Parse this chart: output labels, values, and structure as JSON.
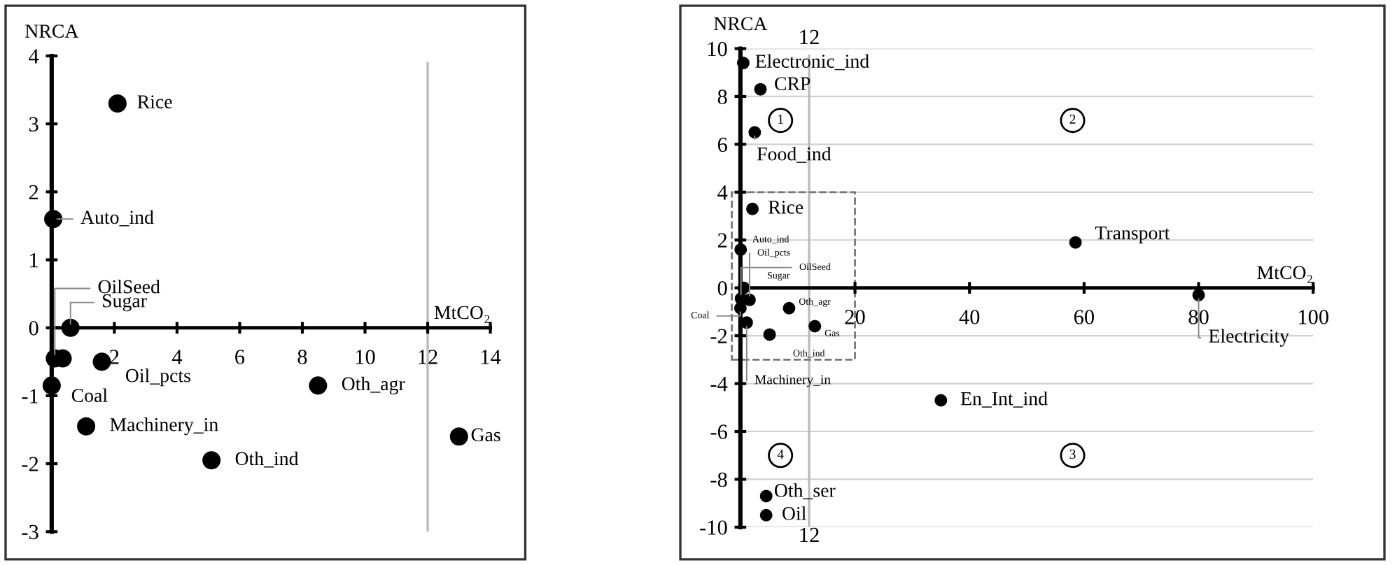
{
  "chart_data": [
    {
      "type": "scatter",
      "xlabel": "MtCO₂",
      "ylabel": "NRCA",
      "marker": "circle",
      "grid": false,
      "xlim": [
        0,
        14
      ],
      "ylim": [
        -3,
        4
      ],
      "xticks": [
        {
          "value": 0,
          "label": null
        },
        2,
        4,
        6,
        8,
        10,
        12,
        14
      ],
      "yticks": [
        -3,
        -2,
        -1,
        0,
        1,
        2,
        3,
        4
      ],
      "series": [
        {
          "color": "#000000",
          "x": [
            2.1,
            0.05,
            0.1,
            0.35,
            1.6,
            0.0,
            1.1,
            5.1,
            8.5,
            13.0,
            0.6
          ],
          "values": [
            3.3,
            1.6,
            -0.45,
            -0.45,
            -0.5,
            -0.85,
            -1.45,
            -1.95,
            -0.85,
            -1.6,
            0.0
          ]
        }
      ],
      "ref_lines": [
        {
          "axis": "x",
          "value": 12,
          "color": "#bbbbbb"
        }
      ],
      "annotations": [
        {
          "text": "Rice",
          "x": 2.1,
          "y": 3.3
        },
        {
          "text": "Auto_ind",
          "x": 0.05,
          "y": 1.6
        },
        {
          "text": "OilSeed",
          "x": 0.1,
          "y": -0.45
        },
        {
          "text": "Sugar",
          "x": 0.6,
          "y": 0.0
        },
        {
          "text": "Oil_pcts",
          "x": 1.6,
          "y": -0.5
        },
        {
          "text": "Coal",
          "x": 0.0,
          "y": -0.85
        },
        {
          "text": "Machinery_in",
          "x": 1.1,
          "y": -1.45
        },
        {
          "text": "Oth_ind",
          "x": 5.1,
          "y": -1.95
        },
        {
          "text": "Oth_agr",
          "x": 8.5,
          "y": -0.85
        },
        {
          "text": "Gas",
          "x": 13.0,
          "y": -1.6
        }
      ]
    },
    {
      "type": "scatter",
      "xlabel": "MtCO₂",
      "ylabel": "NRCA",
      "marker": "circle",
      "grid": "y",
      "xlim": [
        0,
        100
      ],
      "ylim": [
        -10,
        10
      ],
      "xticks": [
        {
          "value": 0,
          "label": null
        },
        20,
        40,
        60,
        80,
        100
      ],
      "yticks": [
        -10,
        -8,
        -6,
        -4,
        -2,
        0,
        2,
        4,
        6,
        8,
        10
      ],
      "series": [
        {
          "color": "#000000",
          "x": [
            0.5,
            3.5,
            2.5,
            2.1,
            0.05,
            0.1,
            1.6,
            0.0,
            1.1,
            5.1,
            8.5,
            13.0,
            0.6,
            58.5,
            80.0,
            35.0,
            4.5,
            4.5
          ],
          "values": [
            9.4,
            8.3,
            6.5,
            3.3,
            1.6,
            -0.45,
            -0.5,
            -0.85,
            -1.45,
            -1.95,
            -0.85,
            -1.6,
            0.0,
            1.9,
            -0.3,
            -4.7,
            -8.7,
            -9.5
          ]
        }
      ],
      "ref_lines": [
        {
          "axis": "x",
          "value": 12,
          "label": "12",
          "color": "#bbbbbb"
        }
      ],
      "annotations": [
        {
          "text": "Electronic_ind",
          "x": 0.5,
          "y": 9.4
        },
        {
          "text": "CRP",
          "x": 3.5,
          "y": 8.3
        },
        {
          "text": "Food_ind",
          "x": 2.5,
          "y": 6.5
        },
        {
          "text": "Rice",
          "x": 2.1,
          "y": 3.3
        },
        {
          "text": "Auto_ind",
          "x": 0.05,
          "y": 1.6
        },
        {
          "text": "Oil_pcts",
          "x": 1.6,
          "y": -0.5
        },
        {
          "text": "OilSeed",
          "x": 0.1,
          "y": -0.45
        },
        {
          "text": "Sugar",
          "x": 0.6,
          "y": 0.0
        },
        {
          "text": "Coal",
          "x": 0.0,
          "y": -0.85
        },
        {
          "text": "Oth_agr",
          "x": 8.5,
          "y": -0.85
        },
        {
          "text": "Gas",
          "x": 13.0,
          "y": -1.6
        },
        {
          "text": "Oth_ind",
          "x": 5.1,
          "y": -1.95
        },
        {
          "text": "Machinery_in",
          "x": 1.1,
          "y": -1.45
        },
        {
          "text": "Transport",
          "x": 58.5,
          "y": 1.9
        },
        {
          "text": "Electricity",
          "x": 80.0,
          "y": -0.3
        },
        {
          "text": "En_Int_ind",
          "x": 35.0,
          "y": -4.7
        },
        {
          "text": "Oth_ser",
          "x": 4.5,
          "y": -8.7
        },
        {
          "text": "Oil",
          "x": 4.5,
          "y": -9.5
        },
        {
          "text": "1",
          "x": 7,
          "y": 7
        },
        {
          "text": "2",
          "x": 58,
          "y": 7
        },
        {
          "text": "3",
          "x": 58,
          "y": -7
        },
        {
          "text": "4",
          "x": 7,
          "y": -7
        }
      ]
    }
  ]
}
